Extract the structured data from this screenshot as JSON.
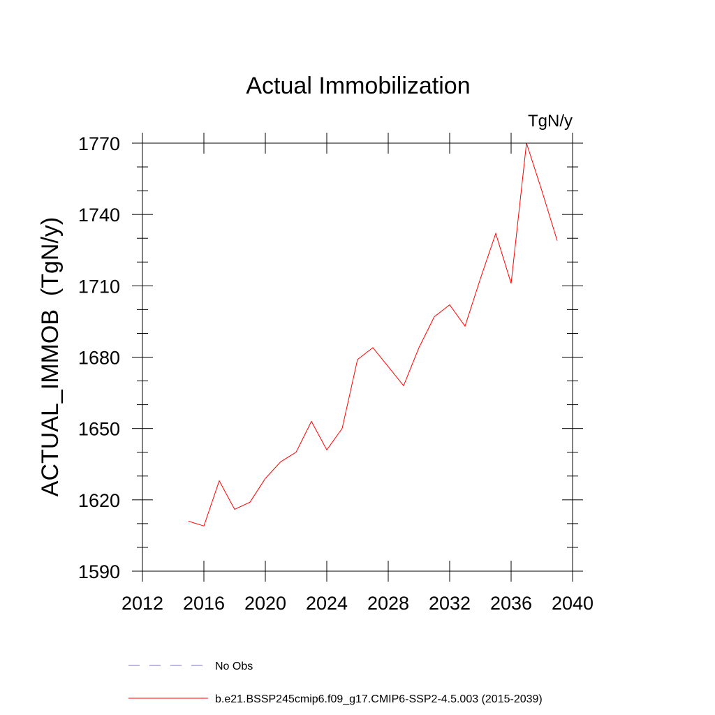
{
  "chart_data": {
    "type": "line",
    "title": "Actual Immobilization",
    "units": "TgN/y",
    "ylabel": "ACTUAL_IMMOB  (TgN/y)",
    "xlabel": "",
    "xlim": [
      2012,
      2040
    ],
    "ylim": [
      1590,
      1770
    ],
    "xticks": [
      2012,
      2016,
      2020,
      2024,
      2028,
      2032,
      2036,
      2040
    ],
    "yticks": [
      1590,
      1620,
      1650,
      1680,
      1710,
      1740,
      1770
    ],
    "grid": false,
    "legend_position": "bottom",
    "series": [
      {
        "name": "No Obs",
        "color": "#7b74c4",
        "style": "dashed",
        "x": [],
        "y": []
      },
      {
        "name": "b.e21.BSSP245cmip6.f09_g17.CMIP6-SSP2-4.5.003 (2015-2039)",
        "color": "#ff0000",
        "style": "solid",
        "x": [
          2015,
          2016,
          2017,
          2018,
          2019,
          2020,
          2021,
          2022,
          2023,
          2024,
          2025,
          2026,
          2027,
          2028,
          2029,
          2030,
          2031,
          2032,
          2033,
          2034,
          2035,
          2036,
          2037,
          2038,
          2039
        ],
        "y": [
          1611,
          1609,
          1628,
          1616,
          1619,
          1629,
          1636,
          1640,
          1653,
          1641,
          1650,
          1679,
          1684,
          1676,
          1668,
          1684,
          1697,
          1702,
          1693,
          1713,
          1732,
          1711,
          1770,
          1750,
          1729
        ]
      }
    ]
  }
}
